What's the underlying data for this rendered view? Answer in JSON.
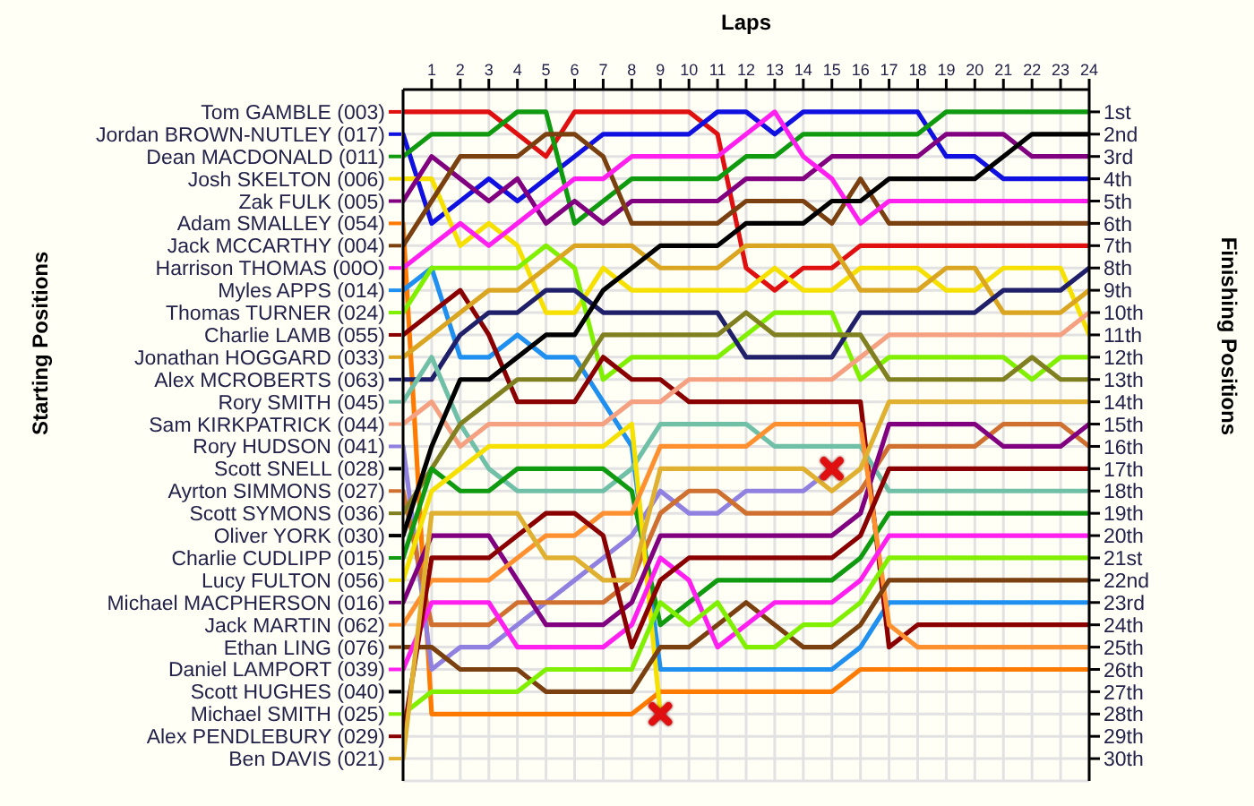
{
  "chart_data": {
    "type": "line",
    "xlabel": "Laps",
    "legend_title": "Starting Positions",
    "ylabel": "Finishing Positions",
    "legend": "left",
    "grid": true,
    "x": [
      0,
      1,
      2,
      3,
      4,
      5,
      6,
      7,
      8,
      9,
      10,
      11,
      12,
      13,
      14,
      15,
      16,
      17,
      18,
      19,
      20,
      21,
      22,
      23,
      24
    ],
    "xlim": [
      0,
      24
    ],
    "xticks": [
      1,
      2,
      3,
      4,
      5,
      6,
      7,
      8,
      9,
      10,
      11,
      12,
      13,
      14,
      15,
      16,
      17,
      18,
      19,
      20,
      21,
      22,
      23,
      24
    ],
    "ylim": [
      31,
      0
    ],
    "yticks": [
      {
        "value": 1,
        "label": "1st"
      },
      {
        "value": 2,
        "label": "2nd"
      },
      {
        "value": 3,
        "label": "3rd"
      },
      {
        "value": 4,
        "label": "4th"
      },
      {
        "value": 5,
        "label": "5th"
      },
      {
        "value": 6,
        "label": "6th"
      },
      {
        "value": 7,
        "label": "7th"
      },
      {
        "value": 8,
        "label": "8th"
      },
      {
        "value": 9,
        "label": "9th"
      },
      {
        "value": 10,
        "label": "10th"
      },
      {
        "value": 11,
        "label": "11th"
      },
      {
        "value": 12,
        "label": "12th"
      },
      {
        "value": 13,
        "label": "13th"
      },
      {
        "value": 14,
        "label": "14th"
      },
      {
        "value": 15,
        "label": "15th"
      },
      {
        "value": 16,
        "label": "16th"
      },
      {
        "value": 17,
        "label": "17th"
      },
      {
        "value": 18,
        "label": "18th"
      },
      {
        "value": 19,
        "label": "19th"
      },
      {
        "value": 20,
        "label": "20th"
      },
      {
        "value": 21,
        "label": "21st"
      },
      {
        "value": 22,
        "label": "22nd"
      },
      {
        "value": 23,
        "label": "23rd"
      },
      {
        "value": 24,
        "label": "24th"
      },
      {
        "value": 25,
        "label": "25th"
      },
      {
        "value": 26,
        "label": "26th"
      },
      {
        "value": 27,
        "label": "27th"
      },
      {
        "value": 28,
        "label": "28th"
      },
      {
        "value": 29,
        "label": "29th"
      },
      {
        "value": 30,
        "label": "30th"
      }
    ],
    "series": [
      {
        "name": "Tom GAMBLE (003)",
        "color": "#e01010",
        "values": [
          1,
          1,
          1,
          1,
          2,
          3,
          1,
          1,
          1,
          1,
          1,
          2,
          8,
          9,
          8,
          8,
          7,
          7,
          7,
          7,
          7,
          7,
          7,
          7,
          7
        ]
      },
      {
        "name": "Jordan BROWN-NUTLEY (017)",
        "color": "#1010e0",
        "values": [
          2,
          6,
          5,
          4,
          5,
          4,
          3,
          2,
          2,
          2,
          2,
          1,
          1,
          2,
          1,
          1,
          1,
          1,
          1,
          3,
          3,
          4,
          4,
          4,
          4
        ]
      },
      {
        "name": "Dean MACDONALD (011)",
        "color": "#109a10",
        "values": [
          3,
          2,
          2,
          2,
          1,
          1,
          6,
          5,
          4,
          4,
          4,
          4,
          3,
          3,
          2,
          2,
          2,
          2,
          2,
          1,
          1,
          1,
          1,
          1,
          1
        ]
      },
      {
        "name": "Josh SKELTON (006)",
        "color": "#f5e000",
        "values": [
          4,
          4,
          7,
          6,
          7,
          10,
          10,
          8,
          9,
          9,
          9,
          9,
          9,
          8,
          9,
          9,
          8,
          8,
          8,
          9,
          9,
          8,
          8,
          8,
          11
        ]
      },
      {
        "name": "Zak FULK (005)",
        "color": "#800080",
        "values": [
          5,
          3,
          4,
          5,
          4,
          6,
          5,
          6,
          5,
          5,
          5,
          5,
          4,
          4,
          4,
          3,
          3,
          3,
          3,
          2,
          2,
          2,
          3,
          3,
          3
        ]
      },
      {
        "name": "Adam SMALLEY (054)",
        "color": "#ff7a00",
        "values": [
          6,
          28,
          28,
          28,
          28,
          28,
          28,
          28,
          28,
          27,
          27,
          27,
          27,
          27,
          27,
          27,
          26,
          26,
          26,
          26,
          26,
          26,
          26,
          26,
          26
        ]
      },
      {
        "name": "Jack MCCARTHY (004)",
        "color": "#7a4010",
        "values": [
          7,
          5,
          3,
          3,
          3,
          2,
          2,
          3,
          6,
          6,
          6,
          6,
          5,
          5,
          5,
          6,
          4,
          6,
          6,
          6,
          6,
          6,
          6,
          6,
          6
        ]
      },
      {
        "name": "Harrison THOMAS (00O)",
        "color": "#ff20f0",
        "values": [
          8,
          7,
          6,
          7,
          6,
          5,
          4,
          4,
          3,
          3,
          3,
          3,
          2,
          1,
          3,
          4,
          6,
          5,
          5,
          5,
          5,
          5,
          5,
          5,
          5
        ]
      },
      {
        "name": "Myles APPS (014)",
        "color": "#2090f0",
        "values": [
          9,
          8,
          12,
          12,
          11,
          12,
          12,
          14,
          16,
          26,
          26,
          26,
          26,
          26,
          26,
          26,
          25,
          23,
          23,
          23,
          23,
          23,
          23,
          23,
          23
        ]
      },
      {
        "name": "Thomas TURNER (024)",
        "color": "#80f000",
        "values": [
          10,
          8,
          8,
          8,
          8,
          7,
          8,
          13,
          12,
          12,
          12,
          12,
          11,
          10,
          10,
          10,
          13,
          12,
          12,
          12,
          12,
          12,
          13,
          12,
          12
        ]
      },
      {
        "name": "Charlie LAMB (055)",
        "color": "#8a0000",
        "values": [
          11,
          10,
          9,
          11,
          14,
          14,
          14,
          12,
          13,
          13,
          14,
          14,
          14,
          14,
          14,
          14,
          14,
          25,
          24,
          24,
          24,
          24,
          24,
          24,
          24
        ]
      },
      {
        "name": "Jonathan HOGGARD (033)",
        "color": "#daa520",
        "values": [
          12,
          11,
          10,
          9,
          9,
          8,
          7,
          7,
          7,
          8,
          8,
          8,
          7,
          7,
          7,
          7,
          9,
          9,
          9,
          8,
          8,
          10,
          10,
          10,
          9
        ]
      },
      {
        "name": "Alex MCROBERTS (063)",
        "color": "#20206a",
        "values": [
          13,
          13,
          11,
          10,
          10,
          9,
          9,
          10,
          10,
          10,
          10,
          10,
          12,
          12,
          12,
          12,
          10,
          10,
          10,
          10,
          10,
          9,
          9,
          9,
          8
        ]
      },
      {
        "name": "Rory SMITH (045)",
        "color": "#70c0a8",
        "values": [
          14,
          12,
          15,
          17,
          18,
          18,
          18,
          18,
          17,
          15,
          15,
          15,
          15,
          16,
          16,
          16,
          16,
          18,
          18,
          18,
          18,
          18,
          18,
          18,
          18
        ]
      },
      {
        "name": "Sam KIRKPATRICK (044)",
        "color": "#f5a080",
        "values": [
          15,
          14,
          16,
          15,
          15,
          15,
          15,
          15,
          14,
          14,
          13,
          13,
          13,
          13,
          13,
          13,
          12,
          11,
          11,
          11,
          11,
          11,
          11,
          11,
          10
        ]
      },
      {
        "name": "Rory HUDSON (041)",
        "color": "#9080e0",
        "values": [
          16,
          26,
          25,
          25,
          24,
          23,
          22,
          21,
          20,
          18,
          19,
          19,
          18,
          18,
          18,
          17,
          null,
          null,
          null,
          null,
          null,
          null,
          null,
          null,
          null
        ]
      },
      {
        "name": "Scott SNELL (028)",
        "values": [
          null,
          null,
          null,
          null,
          null,
          null,
          null,
          null,
          null,
          null,
          null,
          null,
          null,
          null,
          null,
          null,
          null,
          null,
          null,
          null,
          null,
          null,
          null,
          null,
          null
        ]
      },
      {
        "name": "Ayrton SIMMONS (027)",
        "color": "#d07030",
        "values": [
          18,
          24,
          24,
          24,
          23,
          23,
          23,
          23,
          22,
          19,
          18,
          18,
          19,
          19,
          19,
          19,
          18,
          16,
          16,
          16,
          16,
          15,
          15,
          15,
          16
        ]
      },
      {
        "name": "Scott SYMONS (036)",
        "color": "#808020",
        "values": [
          19,
          17,
          15,
          14,
          13,
          13,
          13,
          11,
          11,
          11,
          11,
          11,
          10,
          11,
          11,
          11,
          11,
          13,
          13,
          13,
          13,
          13,
          12,
          13,
          13
        ]
      },
      {
        "name": "Oliver YORK (030)",
        "color": "#000000",
        "values": [
          20,
          16,
          13,
          13,
          12,
          11,
          11,
          9,
          8,
          7,
          7,
          7,
          6,
          6,
          6,
          5,
          5,
          4,
          4,
          4,
          4,
          3,
          2,
          2,
          2
        ]
      },
      {
        "name": "Charlie CUDLIPP (015)",
        "color": "#109a10",
        "values": [
          21,
          17,
          18,
          18,
          17,
          17,
          17,
          17,
          18,
          24,
          23,
          22,
          22,
          22,
          22,
          22,
          21,
          19,
          19,
          19,
          19,
          19,
          19,
          19,
          19
        ]
      },
      {
        "name": "Lucy FULTON (056)",
        "color": "#f5e000",
        "values": [
          22,
          18,
          17,
          16,
          16,
          16,
          16,
          16,
          15,
          28,
          null,
          null,
          null,
          null,
          null,
          null,
          null,
          null,
          null,
          null,
          null,
          null,
          null,
          null,
          null
        ]
      },
      {
        "name": "Michael MACPHERSON (016)",
        "color": "#800080",
        "values": [
          23,
          20,
          20,
          20,
          22,
          24,
          24,
          24,
          23,
          20,
          20,
          20,
          20,
          20,
          20,
          20,
          19,
          15,
          15,
          15,
          15,
          16,
          16,
          16,
          15
        ]
      },
      {
        "name": "Jack MARTIN (062)",
        "color": "#ff9030",
        "values": [
          24,
          22,
          22,
          22,
          21,
          20,
          20,
          19,
          19,
          16,
          16,
          16,
          16,
          15,
          15,
          15,
          15,
          24,
          25,
          25,
          25,
          25,
          25,
          25,
          25
        ]
      },
      {
        "name": "Ethan LING (076)",
        "color": "#7a4010",
        "values": [
          25,
          25,
          26,
          26,
          26,
          27,
          27,
          27,
          27,
          25,
          25,
          24,
          23,
          24,
          25,
          25,
          24,
          22,
          22,
          22,
          22,
          22,
          22,
          22,
          22
        ]
      },
      {
        "name": "Daniel LAMPORT (039)",
        "color": "#ff20f0",
        "values": [
          26,
          23,
          23,
          23,
          25,
          25,
          25,
          25,
          24,
          21,
          22,
          25,
          24,
          23,
          23,
          23,
          22,
          20,
          20,
          20,
          20,
          20,
          20,
          20,
          20
        ]
      },
      {
        "name": "Scott HUGHES (040)",
        "values": [
          null,
          null,
          null,
          null,
          null,
          null,
          null,
          null,
          null,
          null,
          null,
          null,
          null,
          null,
          null,
          null,
          null,
          null,
          null,
          null,
          null,
          null,
          null,
          null,
          null
        ]
      },
      {
        "name": "Michael SMITH (025)",
        "color": "#80f000",
        "values": [
          28,
          27,
          27,
          27,
          27,
          26,
          26,
          26,
          26,
          23,
          24,
          23,
          25,
          25,
          24,
          24,
          23,
          21,
          21,
          21,
          21,
          21,
          21,
          21,
          21
        ]
      },
      {
        "name": "Alex PENDLEBURY (029)",
        "color": "#8a0000",
        "values": [
          29,
          21,
          21,
          21,
          20,
          19,
          19,
          20,
          25,
          22,
          21,
          21,
          21,
          21,
          21,
          21,
          20,
          17,
          17,
          17,
          17,
          17,
          17,
          17,
          17
        ]
      },
      {
        "name": "Ben DAVIS (021)",
        "color": "#e0b030",
        "values": [
          30,
          19,
          19,
          19,
          19,
          21,
          21,
          22,
          22,
          17,
          17,
          17,
          17,
          17,
          17,
          18,
          17,
          14,
          14,
          14,
          14,
          14,
          14,
          14,
          14
        ]
      },
      {
        "type": "scatter",
        "marker": "cross",
        "color": "#e01010",
        "x": [
          9,
          15
        ],
        "values": [
          28,
          17
        ]
      }
    ]
  }
}
